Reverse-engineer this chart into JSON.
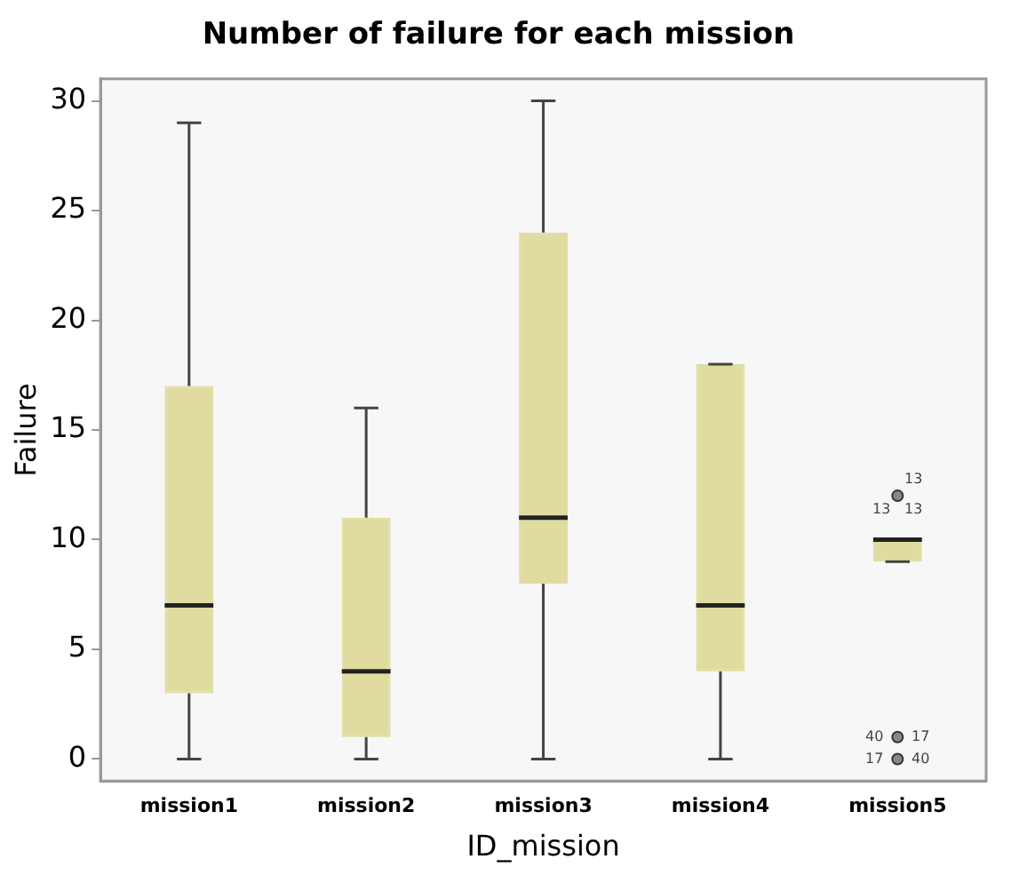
{
  "chart_data": {
    "type": "box",
    "title": "Number of failure for each mission",
    "xlabel": "ID_mission",
    "ylabel": "Failure",
    "categories": [
      "mission1",
      "mission2",
      "mission3",
      "mission4",
      "mission5"
    ],
    "color": "#e0dca0",
    "boxes": [
      {
        "low": 0,
        "q1": 3,
        "median": 7,
        "q3": 17,
        "high": 29
      },
      {
        "low": 0,
        "q1": 1,
        "median": 4,
        "q3": 11,
        "high": 16
      },
      {
        "low": 0,
        "q1": 8,
        "median": 11,
        "q3": 24,
        "high": 30
      },
      {
        "low": 0,
        "q1": 4,
        "median": 7,
        "q3": 18,
        "high": 18
      },
      {
        "low": 9,
        "q1": 9,
        "median": 10,
        "q3": 10,
        "high": 10,
        "outliers": [
          12,
          1,
          0
        ]
      }
    ],
    "ylim": [
      -1,
      31
    ],
    "yticks": [
      0,
      5,
      10,
      15,
      20,
      25,
      30
    ],
    "grid": false,
    "legend": false,
    "annotations": [
      "13",
      "13",
      "13",
      "40",
      "17",
      "17",
      "40"
    ]
  }
}
